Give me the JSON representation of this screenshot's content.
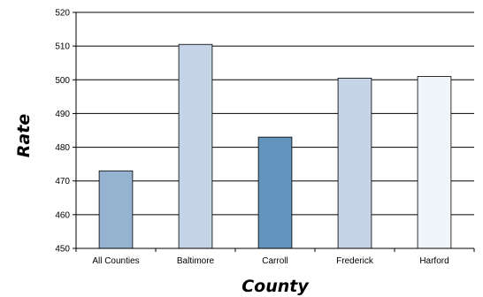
{
  "chart_data": {
    "type": "bar",
    "title": "",
    "xlabel": "County",
    "ylabel": "Rate",
    "categories": [
      "All Counties",
      "Baltimore",
      "Carroll",
      "Frederick",
      "Harford"
    ],
    "values": [
      473,
      510.5,
      483,
      500.5,
      501
    ],
    "bar_colors": [
      "#95b3d0",
      "#c5d5e7",
      "#6394bd",
      "#c5d5e7",
      "#f0f5fa"
    ],
    "ylim": [
      450,
      520
    ],
    "yticks": [
      450,
      460,
      470,
      480,
      490,
      500,
      510,
      520
    ],
    "grid": true,
    "legend": "none"
  }
}
